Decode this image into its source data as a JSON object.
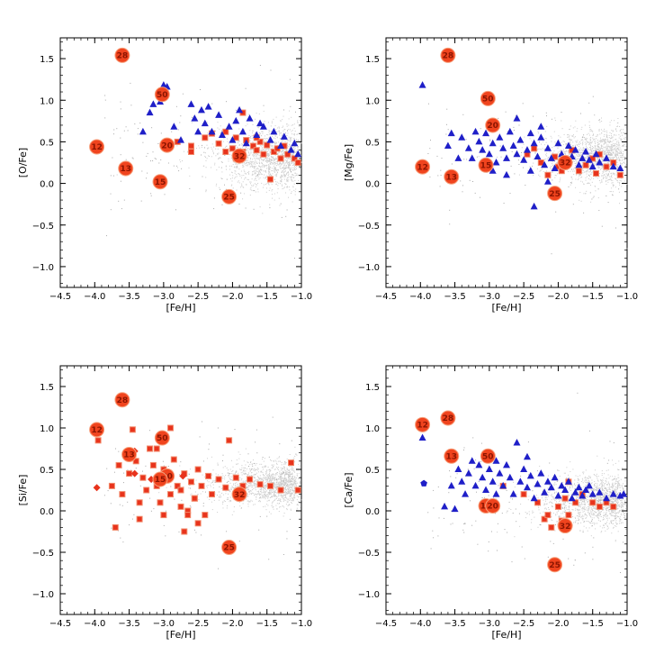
{
  "colors": {
    "background": "#cccccc",
    "triangle": "#1f1fc8",
    "square": "#e8331c",
    "circle": "#f0441e",
    "circle_text": "#8a1400"
  },
  "chart_data": [
    {
      "type": "scatter",
      "id": "panel-ofe",
      "ylabel": "[O/Fe]",
      "xlabel": "[Fe/H]",
      "xlim": [
        -4.5,
        -1.0
      ],
      "ylim": [
        -1.25,
        1.75
      ],
      "xticks": [
        "−4.5",
        "−4.0",
        "−3.5",
        "−3.0",
        "−2.5",
        "−2.0",
        "−1.5",
        "−1.0"
      ],
      "yticks": [
        "−1.0",
        "−0.5",
        "0.0",
        "0.5",
        "1.0",
        "1.5"
      ],
      "background": {
        "center": 0.32,
        "spread": 0.2
      },
      "triangles": [
        [
          -3.3,
          0.62
        ],
        [
          -3.2,
          0.85
        ],
        [
          -3.15,
          0.95
        ],
        [
          -3.05,
          0.98
        ],
        [
          -3.0,
          1.18
        ],
        [
          -2.95,
          1.16
        ],
        [
          -2.85,
          0.68
        ],
        [
          -2.75,
          0.52
        ],
        [
          -2.6,
          0.95
        ],
        [
          -2.55,
          0.78
        ],
        [
          -2.5,
          0.62
        ],
        [
          -2.45,
          0.88
        ],
        [
          -2.4,
          0.72
        ],
        [
          -2.3,
          0.62
        ],
        [
          -2.2,
          0.82
        ],
        [
          -2.15,
          0.58
        ],
        [
          -2.05,
          0.68
        ],
        [
          -2.0,
          0.52
        ],
        [
          -1.95,
          0.75
        ],
        [
          -1.85,
          0.62
        ],
        [
          -1.8,
          0.48
        ],
        [
          -1.75,
          0.78
        ],
        [
          -1.65,
          0.58
        ],
        [
          -1.55,
          0.68
        ],
        [
          -1.45,
          0.52
        ],
        [
          -1.4,
          0.62
        ],
        [
          -1.3,
          0.45
        ],
        [
          -1.25,
          0.56
        ],
        [
          -1.15,
          0.4
        ],
        [
          -1.1,
          0.48
        ],
        [
          -1.05,
          0.35
        ],
        [
          -2.35,
          0.92
        ],
        [
          -1.9,
          0.88
        ],
        [
          -1.6,
          0.72
        ]
      ],
      "squares": [
        [
          -2.8,
          0.5
        ],
        [
          -2.6,
          0.45
        ],
        [
          -2.4,
          0.55
        ],
        [
          -2.3,
          0.6
        ],
        [
          -2.2,
          0.48
        ],
        [
          -2.1,
          0.62
        ],
        [
          -2.0,
          0.42
        ],
        [
          -1.95,
          0.55
        ],
        [
          -1.85,
          0.38
        ],
        [
          -1.8,
          0.52
        ],
        [
          -1.7,
          0.45
        ],
        [
          -1.65,
          0.4
        ],
        [
          -1.6,
          0.5
        ],
        [
          -1.55,
          0.35
        ],
        [
          -1.5,
          0.46
        ],
        [
          -1.4,
          0.38
        ],
        [
          -1.35,
          0.42
        ],
        [
          -1.3,
          0.3
        ],
        [
          -1.25,
          0.45
        ],
        [
          -1.2,
          0.35
        ],
        [
          -1.1,
          0.3
        ],
        [
          -1.05,
          0.25
        ],
        [
          -1.85,
          0.85
        ],
        [
          -2.1,
          0.38
        ],
        [
          -1.45,
          0.05
        ],
        [
          -1.65,
          0.55
        ],
        [
          -2.6,
          0.38
        ],
        [
          -1.95,
          0.3
        ]
      ],
      "circles": [
        {
          "x": -3.6,
          "y": 1.54,
          "label": "28"
        },
        {
          "x": -3.02,
          "y": 1.07,
          "label": "50"
        },
        {
          "x": -3.97,
          "y": 0.44,
          "label": "12"
        },
        {
          "x": -2.95,
          "y": 0.46,
          "label": "20"
        },
        {
          "x": -3.55,
          "y": 0.18,
          "label": "13"
        },
        {
          "x": -3.05,
          "y": 0.02,
          "label": "15"
        },
        {
          "x": -2.05,
          "y": -0.16,
          "label": "25"
        },
        {
          "x": -1.9,
          "y": 0.33,
          "label": "32"
        }
      ]
    },
    {
      "type": "scatter",
      "id": "panel-mgfe",
      "ylabel": "[Mg/Fe]",
      "xlabel": "[Fe/H]",
      "xlim": [
        -4.5,
        -1.0
      ],
      "ylim": [
        -1.25,
        1.75
      ],
      "xticks": [
        "−4.5",
        "−4.0",
        "−3.5",
        "−3.0",
        "−2.5",
        "−2.0",
        "−1.5",
        "−1.0"
      ],
      "yticks": [
        "−1.0",
        "−0.5",
        "0.0",
        "0.5",
        "1.0",
        "1.5"
      ],
      "background": {
        "center": 0.33,
        "spread": 0.17
      },
      "triangles": [
        [
          -3.97,
          1.18
        ],
        [
          -3.6,
          0.45
        ],
        [
          -3.4,
          0.55
        ],
        [
          -3.3,
          0.42
        ],
        [
          -3.25,
          0.3
        ],
        [
          -3.15,
          0.5
        ],
        [
          -3.1,
          0.4
        ],
        [
          -3.05,
          0.6
        ],
        [
          -3.0,
          0.35
        ],
        [
          -2.95,
          0.48
        ],
        [
          -2.9,
          0.25
        ],
        [
          -2.85,
          0.55
        ],
        [
          -2.8,
          0.42
        ],
        [
          -2.75,
          0.3
        ],
        [
          -2.7,
          0.62
        ],
        [
          -2.65,
          0.45
        ],
        [
          -2.6,
          0.35
        ],
        [
          -2.55,
          0.52
        ],
        [
          -2.5,
          0.28
        ],
        [
          -2.45,
          0.4
        ],
        [
          -2.4,
          0.15
        ],
        [
          -2.35,
          0.48
        ],
        [
          -2.3,
          0.32
        ],
        [
          -2.25,
          0.55
        ],
        [
          -2.2,
          0.22
        ],
        [
          -2.15,
          0.42
        ],
        [
          -2.1,
          0.3
        ],
        [
          -2.05,
          0.18
        ],
        [
          -2.0,
          0.48
        ],
        [
          -1.95,
          0.35
        ],
        [
          -1.9,
          0.25
        ],
        [
          -1.85,
          0.45
        ],
        [
          -1.8,
          0.32
        ],
        [
          -1.75,
          0.4
        ],
        [
          -1.7,
          0.22
        ],
        [
          -1.65,
          0.3
        ],
        [
          -1.6,
          0.38
        ],
        [
          -1.55,
          0.28
        ],
        [
          -1.5,
          0.2
        ],
        [
          -1.45,
          0.35
        ],
        [
          -1.4,
          0.25
        ],
        [
          -1.3,
          0.3
        ],
        [
          -1.2,
          0.2
        ],
        [
          -1.1,
          0.18
        ],
        [
          -2.35,
          -0.28
        ],
        [
          -2.6,
          0.78
        ],
        [
          -2.4,
          0.6
        ],
        [
          -3.45,
          0.3
        ],
        [
          -2.15,
          0.02
        ],
        [
          -2.75,
          0.1
        ],
        [
          -3.55,
          0.6
        ],
        [
          -2.95,
          0.15
        ],
        [
          -2.25,
          0.68
        ],
        [
          -3.2,
          0.62
        ]
      ],
      "squares": [
        [
          -2.45,
          0.35
        ],
        [
          -2.25,
          0.25
        ],
        [
          -2.15,
          0.1
        ],
        [
          -2.0,
          0.2
        ],
        [
          -1.9,
          0.3
        ],
        [
          -1.8,
          0.4
        ],
        [
          -1.7,
          0.15
        ],
        [
          -1.6,
          0.22
        ],
        [
          -1.5,
          0.3
        ],
        [
          -1.4,
          0.35
        ],
        [
          -1.3,
          0.2
        ],
        [
          -1.2,
          0.25
        ],
        [
          -1.1,
          0.1
        ],
        [
          -2.35,
          0.42
        ],
        [
          -1.95,
          0.15
        ],
        [
          -2.05,
          0.32
        ],
        [
          -1.45,
          0.12
        ]
      ],
      "circles": [
        {
          "x": -3.6,
          "y": 1.54,
          "label": "28"
        },
        {
          "x": -3.02,
          "y": 1.02,
          "label": "50"
        },
        {
          "x": -2.95,
          "y": 0.7,
          "label": "20"
        },
        {
          "x": -3.97,
          "y": 0.2,
          "label": "12"
        },
        {
          "x": -3.55,
          "y": 0.08,
          "label": "13"
        },
        {
          "x": -3.05,
          "y": 0.22,
          "label": "15"
        },
        {
          "x": -2.05,
          "y": -0.12,
          "label": "25"
        },
        {
          "x": -1.9,
          "y": 0.25,
          "label": "32"
        }
      ]
    },
    {
      "type": "scatter",
      "id": "panel-sife",
      "ylabel": "[Si/Fe]",
      "xlabel": "[Fe/H]",
      "xlim": [
        -4.5,
        -1.0
      ],
      "ylim": [
        -1.25,
        1.75
      ],
      "xticks": [
        "−4.5",
        "−4.0",
        "−3.5",
        "−3.0",
        "−2.5",
        "−2.0",
        "−1.5",
        "−1.0"
      ],
      "yticks": [
        "−1.0",
        "−0.5",
        "0.0",
        "0.5",
        "1.0",
        "1.5"
      ],
      "background": {
        "center": 0.33,
        "spread": 0.13
      },
      "triangles": [],
      "squares": [
        [
          -3.95,
          0.85
        ],
        [
          -3.75,
          0.3
        ],
        [
          -3.7,
          -0.2
        ],
        [
          -3.65,
          0.55
        ],
        [
          -3.6,
          0.2
        ],
        [
          -3.5,
          0.45
        ],
        [
          -3.45,
          0.98
        ],
        [
          -3.4,
          0.6
        ],
        [
          -3.35,
          0.1
        ],
        [
          -3.3,
          0.4
        ],
        [
          -3.25,
          0.25
        ],
        [
          -3.2,
          0.75
        ],
        [
          -3.15,
          0.55
        ],
        [
          -3.1,
          0.3
        ],
        [
          -3.05,
          0.1
        ],
        [
          -3.0,
          0.5
        ],
        [
          -2.95,
          0.4
        ],
        [
          -2.9,
          0.2
        ],
        [
          -2.85,
          0.62
        ],
        [
          -2.8,
          0.3
        ],
        [
          -2.75,
          0.05
        ],
        [
          -2.7,
          0.45
        ],
        [
          -2.65,
          0.0
        ],
        [
          -2.6,
          0.35
        ],
        [
          -2.55,
          0.15
        ],
        [
          -2.5,
          0.5
        ],
        [
          -2.45,
          0.3
        ],
        [
          -2.4,
          -0.05
        ],
        [
          -2.35,
          0.42
        ],
        [
          -2.3,
          0.2
        ],
        [
          -2.2,
          0.38
        ],
        [
          -2.1,
          0.28
        ],
        [
          -2.05,
          0.85
        ],
        [
          -1.95,
          0.4
        ],
        [
          -1.85,
          0.3
        ],
        [
          -1.75,
          0.38
        ],
        [
          -1.6,
          0.32
        ],
        [
          -1.45,
          0.3
        ],
        [
          -1.3,
          0.25
        ],
        [
          -1.15,
          0.58
        ],
        [
          -1.05,
          0.25
        ],
        [
          -2.9,
          1.0
        ],
        [
          -3.1,
          0.75
        ],
        [
          -2.75,
          0.25
        ],
        [
          -3.35,
          -0.1
        ],
        [
          -2.65,
          -0.05
        ],
        [
          -2.5,
          -0.15
        ],
        [
          -2.7,
          -0.25
        ],
        [
          -3.0,
          -0.05
        ],
        [
          -2.55,
          0.15
        ]
      ],
      "diamonds": [
        [
          -3.97,
          0.28
        ],
        [
          -3.42,
          0.72
        ],
        [
          -3.18,
          0.38
        ],
        [
          -3.42,
          0.45
        ],
        [
          -2.72,
          0.42
        ]
      ],
      "circles": [
        {
          "x": -3.6,
          "y": 1.34,
          "label": "28"
        },
        {
          "x": -3.97,
          "y": 0.98,
          "label": "12"
        },
        {
          "x": -3.02,
          "y": 0.88,
          "label": "50"
        },
        {
          "x": -3.5,
          "y": 0.68,
          "label": "13"
        },
        {
          "x": -2.95,
          "y": 0.42,
          "label": "20"
        },
        {
          "x": -3.05,
          "y": 0.38,
          "label": "15"
        },
        {
          "x": -1.9,
          "y": 0.2,
          "label": "32"
        },
        {
          "x": -2.05,
          "y": -0.44,
          "label": "25"
        }
      ]
    },
    {
      "type": "scatter",
      "id": "panel-cafe",
      "ylabel": "[Ca/Fe]",
      "xlabel": "[Fe/H]",
      "xlim": [
        -4.5,
        -1.0
      ],
      "ylim": [
        -1.25,
        1.75
      ],
      "xticks": [
        "−4.5",
        "−4.0",
        "−3.5",
        "−3.0",
        "−2.5",
        "−2.0",
        "−1.5",
        "−1.0"
      ],
      "yticks": [
        "−1.0",
        "−0.5",
        "0.0",
        "0.5",
        "1.0",
        "1.5"
      ],
      "background": {
        "center": 0.12,
        "spread": 0.16
      },
      "triangles": [
        [
          -3.97,
          0.88
        ],
        [
          -3.65,
          0.05
        ],
        [
          -3.55,
          0.3
        ],
        [
          -3.5,
          0.02
        ],
        [
          -3.45,
          0.5
        ],
        [
          -3.4,
          0.35
        ],
        [
          -3.35,
          0.2
        ],
        [
          -3.3,
          0.45
        ],
        [
          -3.2,
          0.3
        ],
        [
          -3.15,
          0.55
        ],
        [
          -3.1,
          0.4
        ],
        [
          -3.05,
          0.25
        ],
        [
          -3.0,
          0.5
        ],
        [
          -2.95,
          0.35
        ],
        [
          -2.9,
          0.2
        ],
        [
          -2.85,
          0.45
        ],
        [
          -2.8,
          0.3
        ],
        [
          -2.75,
          0.55
        ],
        [
          -2.7,
          0.4
        ],
        [
          -2.65,
          0.2
        ],
        [
          -2.6,
          0.82
        ],
        [
          -2.55,
          0.35
        ],
        [
          -2.5,
          0.5
        ],
        [
          -2.45,
          0.28
        ],
        [
          -2.4,
          0.42
        ],
        [
          -2.35,
          0.15
        ],
        [
          -2.3,
          0.32
        ],
        [
          -2.25,
          0.45
        ],
        [
          -2.2,
          0.22
        ],
        [
          -2.15,
          0.35
        ],
        [
          -2.1,
          0.28
        ],
        [
          -2.05,
          0.4
        ],
        [
          -2.0,
          0.18
        ],
        [
          -1.95,
          0.3
        ],
        [
          -1.9,
          0.25
        ],
        [
          -1.85,
          0.35
        ],
        [
          -1.8,
          0.15
        ],
        [
          -1.75,
          0.22
        ],
        [
          -1.7,
          0.28
        ],
        [
          -1.65,
          0.18
        ],
        [
          -1.6,
          0.25
        ],
        [
          -1.5,
          0.2
        ],
        [
          -1.4,
          0.22
        ],
        [
          -1.3,
          0.15
        ],
        [
          -1.2,
          0.2
        ],
        [
          -1.1,
          0.18
        ],
        [
          -1.05,
          0.2
        ],
        [
          -2.45,
          0.65
        ],
        [
          -2.9,
          0.6
        ],
        [
          -3.25,
          0.6
        ],
        [
          -1.55,
          0.3
        ]
      ],
      "squares": [
        [
          -2.8,
          0.3
        ],
        [
          -2.5,
          0.2
        ],
        [
          -2.3,
          0.1
        ],
        [
          -2.2,
          -0.1
        ],
        [
          -2.1,
          -0.2
        ],
        [
          -2.0,
          0.05
        ],
        [
          -1.9,
          0.15
        ],
        [
          -1.85,
          -0.05
        ],
        [
          -1.75,
          0.1
        ],
        [
          -1.65,
          0.2
        ],
        [
          -1.5,
          0.1
        ],
        [
          -1.4,
          0.05
        ],
        [
          -1.3,
          0.1
        ],
        [
          -1.2,
          0.05
        ],
        [
          -1.85,
          0.35
        ],
        [
          -2.15,
          -0.05
        ],
        [
          -1.95,
          -0.12
        ]
      ],
      "pentagons": [
        [
          -3.95,
          0.33
        ]
      ],
      "circles": [
        {
          "x": -3.97,
          "y": 1.04,
          "label": "12"
        },
        {
          "x": -3.6,
          "y": 1.12,
          "label": "28"
        },
        {
          "x": -3.55,
          "y": 0.66,
          "label": "13"
        },
        {
          "x": -3.02,
          "y": 0.66,
          "label": "50"
        },
        {
          "x": -3.05,
          "y": 0.06,
          "label": "15"
        },
        {
          "x": -2.95,
          "y": 0.06,
          "label": "20"
        },
        {
          "x": -1.9,
          "y": -0.18,
          "label": "32"
        },
        {
          "x": -2.05,
          "y": -0.65,
          "label": "25"
        }
      ]
    }
  ]
}
